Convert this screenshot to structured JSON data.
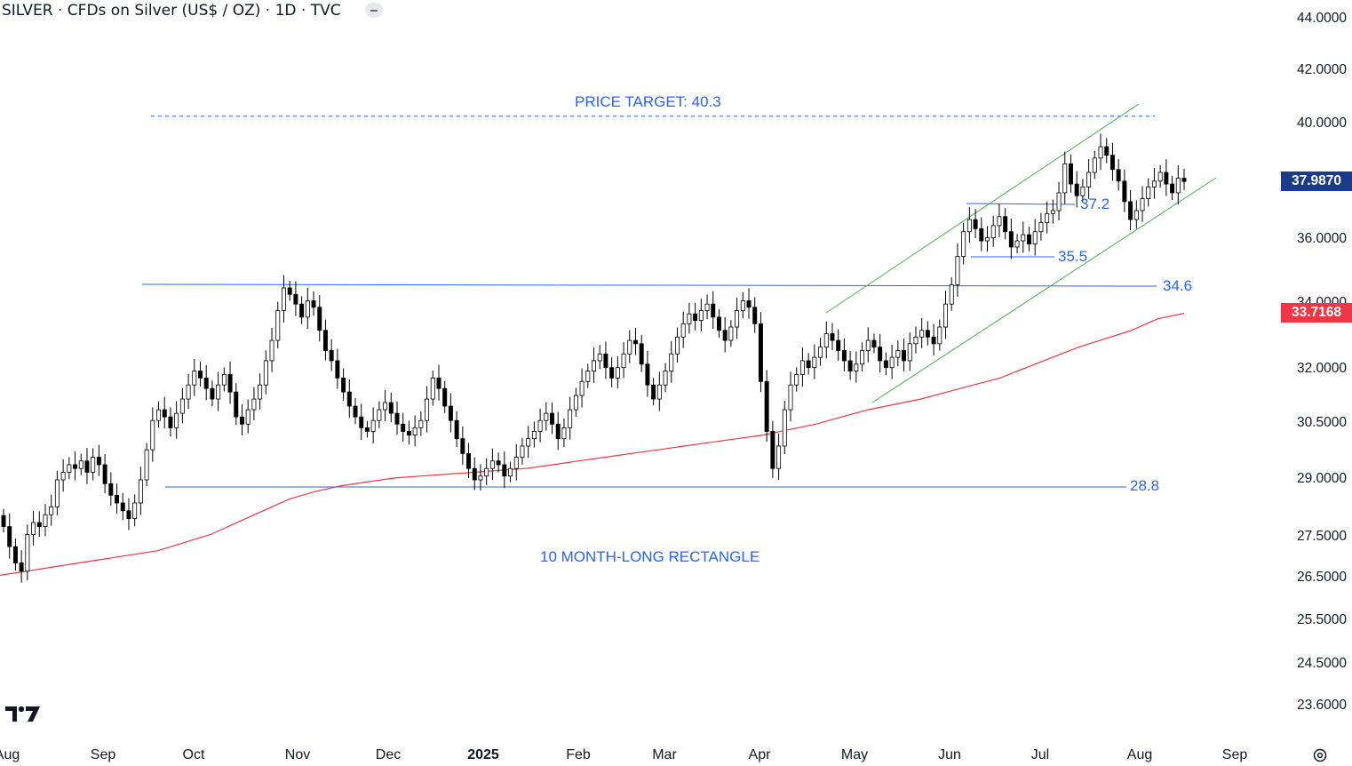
{
  "header": {
    "title": "SILVER · CFDs on Silver (US$ / OZ) · 1D · TVC"
  },
  "chart_data": {
    "type": "candlestick",
    "symbol": "SILVER",
    "interval": "1D",
    "y_axis": {
      "ticks": [
        "44.0000",
        "42.0000",
        "40.0000",
        "36.0000",
        "34.0000",
        "32.0000",
        "30.5000",
        "29.0000",
        "27.5000",
        "26.5000",
        "25.5000",
        "24.5000",
        "23.6000"
      ],
      "scale": "log",
      "last_price": "37.9870",
      "last_price_color": "#1a3a8c",
      "ma_value": "33.7168",
      "ma_color": "#f23645"
    },
    "x_axis": {
      "ticks": [
        "Aug",
        "Sep",
        "Oct",
        "Nov",
        "Dec",
        "2025",
        "Feb",
        "Mar",
        "Apr",
        "May",
        "Jun",
        "Jul",
        "Aug",
        "Sep"
      ]
    },
    "annotations": {
      "price_target": "PRICE TARGET: 40.3",
      "rectangle_label": "10 MONTH-LONG RECTANGLE",
      "resistance_label": "34.6",
      "support_label": "28.8",
      "flag_top_label": "37.2",
      "flag_bottom_label": "35.5"
    },
    "levels": {
      "price_target": 40.3,
      "resistance": 34.6,
      "support": 28.8,
      "flag_top": 37.2,
      "flag_bottom": 35.5
    },
    "colors": {
      "levels": "#2962ff",
      "channel": "#4caf50",
      "moving_average": "#f23645",
      "candle": "#000000"
    },
    "series": [
      {
        "kind": "ohlc_closes",
        "closes": [
          27.8,
          27.3,
          26.9,
          26.7,
          27.6,
          27.9,
          27.8,
          28.1,
          28.3,
          29.0,
          29.2,
          29.4,
          29.3,
          29.5,
          29.2,
          29.6,
          29.4,
          28.9,
          28.6,
          28.4,
          28.2,
          28.0,
          28.4,
          29.0,
          29.8,
          30.6,
          30.9,
          30.7,
          30.4,
          30.8,
          31.2,
          31.6,
          32.0,
          31.8,
          31.5,
          31.2,
          31.6,
          31.9,
          31.4,
          30.7,
          30.5,
          30.9,
          31.2,
          31.6,
          32.3,
          32.9,
          33.8,
          34.5,
          34.3,
          34.0,
          33.6,
          34.1,
          33.9,
          33.2,
          32.6,
          32.3,
          31.8,
          31.4,
          31.0,
          30.7,
          30.4,
          30.3,
          30.6,
          30.9,
          31.1,
          30.8,
          30.5,
          30.3,
          30.2,
          30.4,
          30.6,
          31.2,
          31.8,
          31.5,
          31.0,
          30.6,
          30.1,
          29.7,
          29.3,
          29.0,
          29.1,
          29.3,
          29.5,
          29.4,
          29.1,
          29.3,
          29.6,
          29.9,
          30.1,
          30.3,
          30.6,
          30.8,
          30.5,
          30.1,
          30.4,
          30.9,
          31.3,
          31.7,
          32.0,
          32.3,
          32.5,
          32.1,
          31.8,
          32.1,
          32.5,
          32.9,
          32.8,
          32.2,
          31.6,
          31.2,
          31.6,
          32.0,
          32.5,
          33.0,
          33.4,
          33.7,
          33.5,
          33.8,
          34.0,
          33.6,
          33.2,
          32.9,
          33.3,
          33.8,
          34.1,
          33.9,
          33.4,
          31.7,
          30.3,
          29.3,
          29.9,
          30.9,
          31.6,
          31.9,
          32.3,
          32.1,
          32.4,
          32.7,
          33.1,
          32.9,
          32.6,
          32.3,
          32.0,
          32.2,
          32.6,
          32.9,
          32.7,
          32.3,
          32.1,
          32.4,
          32.6,
          32.3,
          32.8,
          33.0,
          33.2,
          33.0,
          32.8,
          33.3,
          34.0,
          34.6,
          35.5,
          36.3,
          36.7,
          36.4,
          36.0,
          36.1,
          36.5,
          36.8,
          36.3,
          35.8,
          36.0,
          36.2,
          35.9,
          36.3,
          36.6,
          36.9,
          37.0,
          37.6,
          38.6,
          37.9,
          37.5,
          37.8,
          38.3,
          38.8,
          39.2,
          38.9,
          38.4,
          38.0,
          37.3,
          36.7,
          37.0,
          37.4,
          37.8,
          38.0,
          38.3,
          37.9,
          37.6,
          38.1,
          37.987
        ]
      },
      {
        "kind": "moving_average",
        "values": [
          26.6,
          26.7,
          26.8,
          26.9,
          27.0,
          27.1,
          27.2,
          27.4,
          27.6,
          27.9,
          28.2,
          28.5,
          28.7,
          28.85,
          28.95,
          29.05,
          29.1,
          29.15,
          29.2,
          29.25,
          29.3,
          29.4,
          29.5,
          29.6,
          29.7,
          29.8,
          29.9,
          30.0,
          30.1,
          30.2,
          30.35,
          30.5,
          30.7,
          30.9,
          31.05,
          31.2,
          31.4,
          31.6,
          31.8,
          32.1,
          32.4,
          32.7,
          32.95,
          33.2,
          33.55,
          33.7168
        ]
      }
    ]
  }
}
